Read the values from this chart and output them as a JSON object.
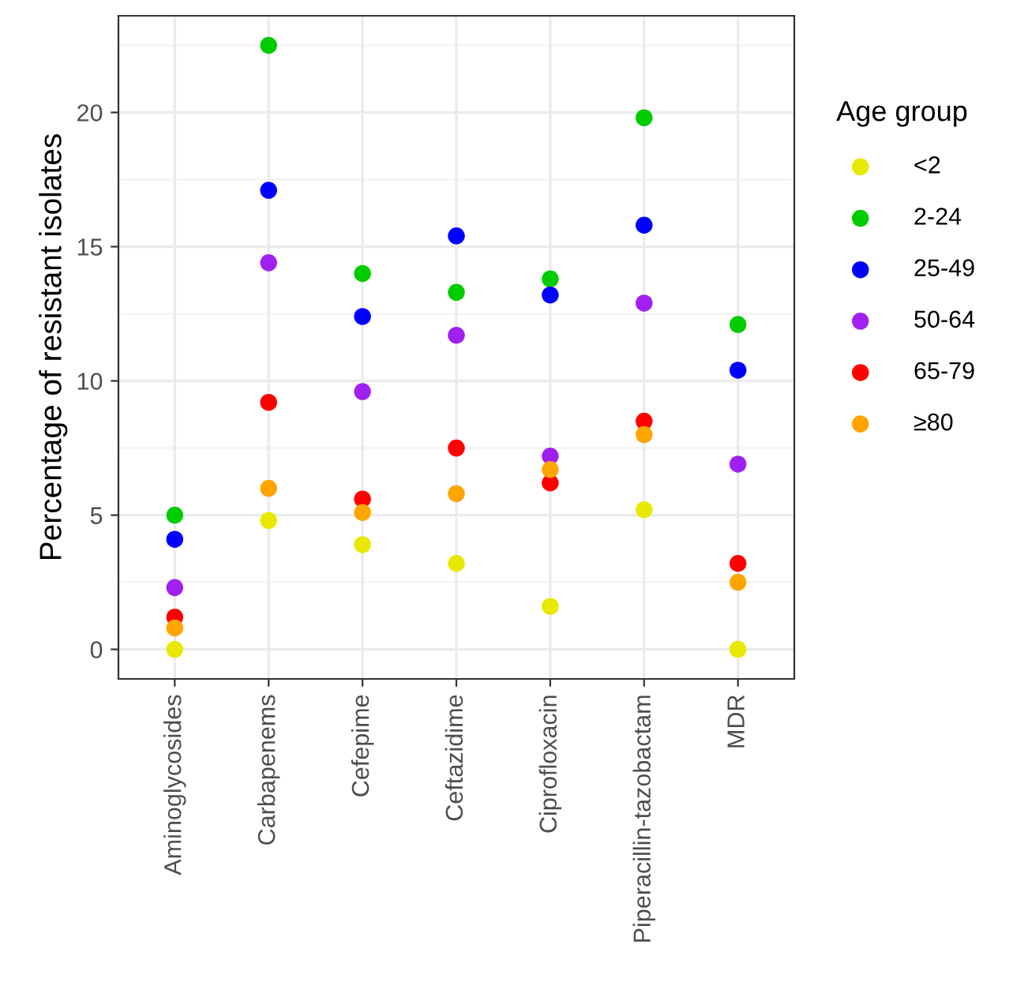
{
  "chart_data": {
    "type": "scatter",
    "ylabel": "Percentage of resistant isolates",
    "legend_title": "Age group",
    "categories": [
      "Aminoglycosides",
      "Carbapenems",
      "Cefepime",
      "Ceftazidime",
      "Ciprofloxacin",
      "Piperacillin-tazobactam",
      "MDR"
    ],
    "series": [
      {
        "name": "<2",
        "color": "#e8e800",
        "values": [
          0,
          4.8,
          3.9,
          3.2,
          1.6,
          5.2,
          0
        ]
      },
      {
        "name": "2-24",
        "color": "#00cc00",
        "values": [
          5.0,
          22.5,
          14.0,
          13.3,
          13.8,
          19.8,
          12.1
        ]
      },
      {
        "name": "25-49",
        "color": "#0000ff",
        "values": [
          4.1,
          17.1,
          12.4,
          15.4,
          13.2,
          15.8,
          10.4
        ]
      },
      {
        "name": "50-64",
        "color": "#a020f0",
        "values": [
          2.3,
          14.4,
          9.6,
          11.7,
          7.2,
          12.9,
          6.9
        ]
      },
      {
        "name": "65-79",
        "color": "#ff0000",
        "values": [
          1.2,
          9.2,
          5.6,
          7.5,
          6.2,
          8.5,
          3.2
        ]
      },
      {
        "name": "≥80",
        "color": "#ffa500",
        "values": [
          0.8,
          6.0,
          5.1,
          5.8,
          6.7,
          8.0,
          2.5
        ]
      }
    ],
    "ylim": [
      -1.1,
      23.6
    ],
    "yticks": [
      0,
      5,
      10,
      15,
      20
    ],
    "grid": true,
    "legend": "right",
    "marker": "circle"
  }
}
